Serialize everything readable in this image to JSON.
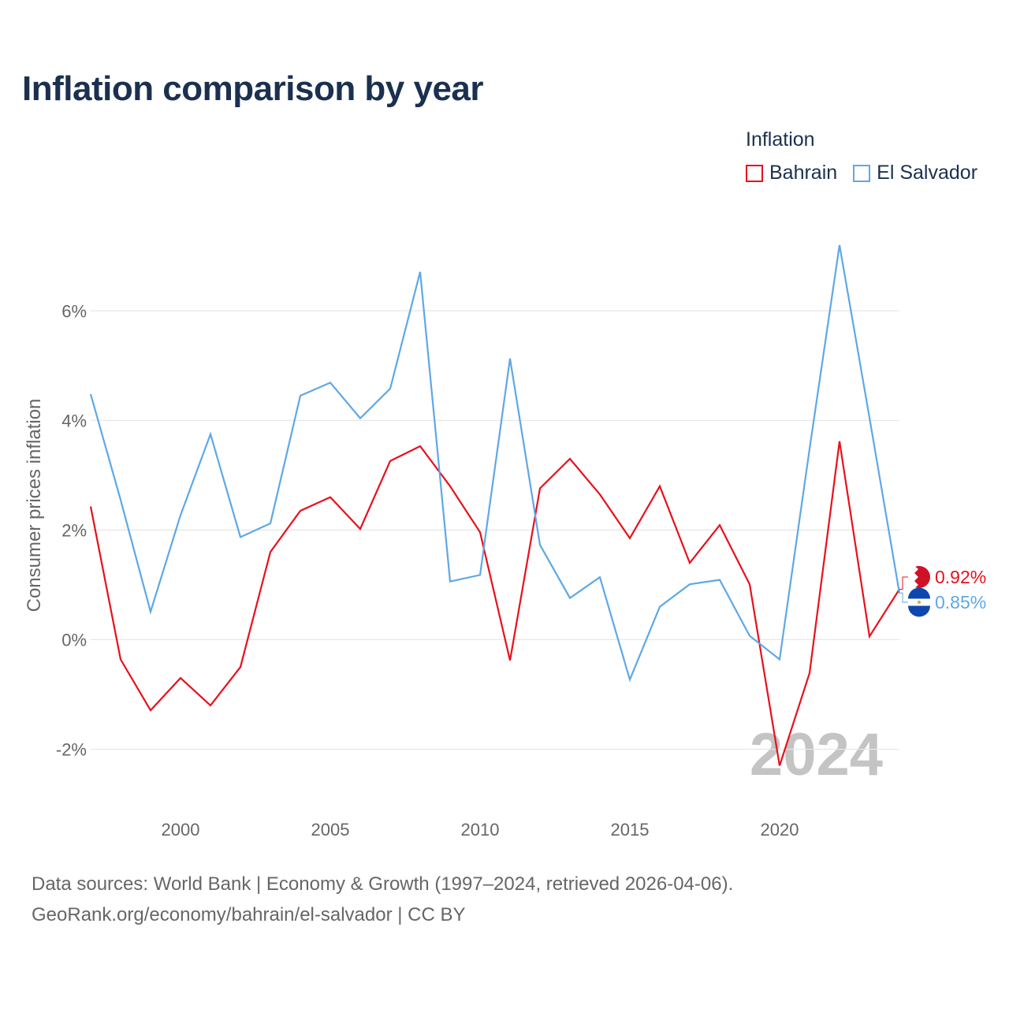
{
  "title": "Inflation comparison by year",
  "legend": {
    "title": "Inflation",
    "items": [
      {
        "name": "Bahrain",
        "color": "#e8101c"
      },
      {
        "name": "El Salvador",
        "color": "#5ea8e6"
      }
    ]
  },
  "year_watermark": "2024",
  "footer": {
    "line1": "Data sources: World Bank | Economy & Growth (1997–2024, retrieved 2026-04-06).",
    "line2": "GeoRank.org/economy/bahrain/el-salvador | CC BY"
  },
  "chart_data": {
    "type": "line",
    "title": "Inflation comparison by year",
    "xlabel": "",
    "ylabel": "Consumer prices inflation",
    "x": [
      1997,
      1998,
      1999,
      2000,
      2001,
      2002,
      2003,
      2004,
      2005,
      2006,
      2007,
      2008,
      2009,
      2010,
      2011,
      2012,
      2013,
      2014,
      2015,
      2016,
      2017,
      2018,
      2019,
      2020,
      2021,
      2022,
      2023,
      2024
    ],
    "xlim": [
      1997,
      2024
    ],
    "ylim": [
      -3.0,
      7.5
    ],
    "x_ticks": [
      2000,
      2005,
      2010,
      2015,
      2020
    ],
    "y_ticks": [
      -2,
      0,
      2,
      4,
      6
    ],
    "y_tick_labels": [
      "-2%",
      "0%",
      "2%",
      "4%",
      "6%"
    ],
    "x_tick_labels": [
      "2000",
      "2005",
      "2010",
      "2015",
      "2020"
    ],
    "grid": true,
    "legend_position": "top-right",
    "series": [
      {
        "name": "Bahrain",
        "color": "#e8101c",
        "values": [
          2.43,
          -0.36,
          -1.29,
          -0.7,
          -1.2,
          -0.5,
          1.6,
          2.35,
          2.6,
          2.02,
          3.26,
          3.53,
          2.8,
          1.96,
          -0.38,
          2.76,
          3.3,
          2.65,
          1.85,
          2.8,
          1.4,
          2.09,
          1.01,
          -2.3,
          -0.61,
          3.62,
          0.06,
          0.92
        ],
        "end_label": "0.92%"
      },
      {
        "name": "El Salvador",
        "color": "#5ea8e6",
        "values": [
          4.48,
          2.55,
          0.51,
          2.27,
          3.75,
          1.87,
          2.12,
          4.45,
          4.69,
          4.04,
          4.58,
          6.71,
          1.06,
          1.18,
          5.13,
          1.73,
          0.76,
          1.14,
          -0.73,
          0.6,
          1.01,
          1.09,
          0.07,
          -0.36,
          3.48,
          7.2,
          4.05,
          0.85
        ],
        "end_label": "0.85%"
      }
    ]
  }
}
